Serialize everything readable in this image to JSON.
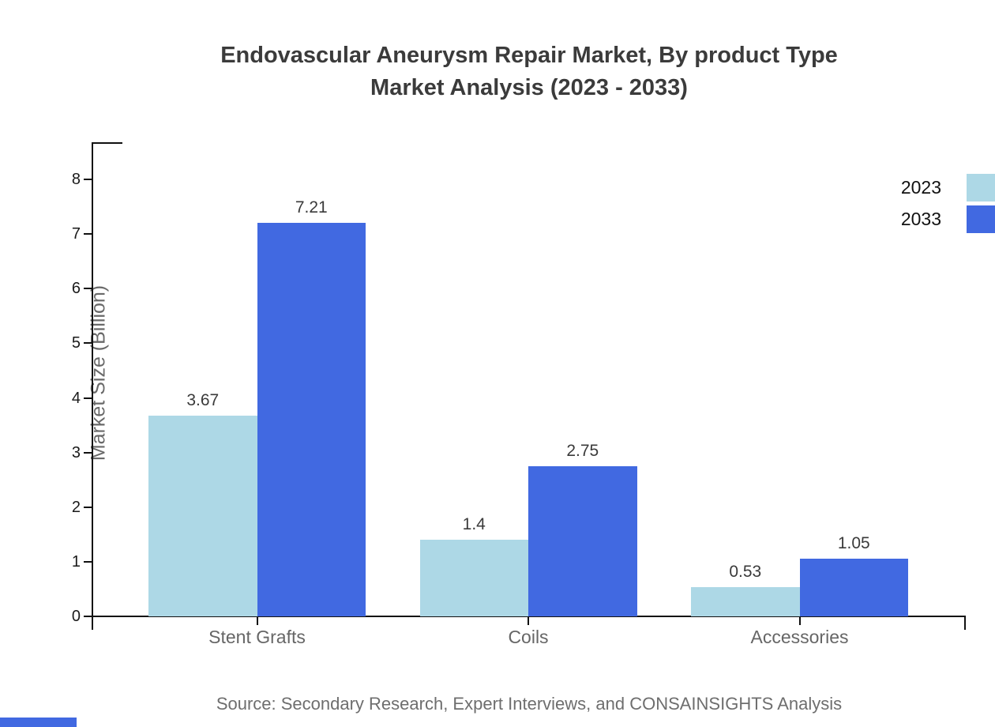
{
  "title": {
    "line1": "Endovascular Aneurysm Repair Market, By product Type",
    "line2": "Market Analysis (2023 - 2033)"
  },
  "source": "Source: Secondary Research, Expert Interviews, and CONSAINSIGHTS Analysis",
  "colors": {
    "series_2023": "#ADD8E6",
    "series_2033": "#4169E1",
    "accent": "#4169E1",
    "axis": "#111111",
    "title_text": "#3b3b3b",
    "value_label_text": "#3a3a3a",
    "category_text": "#666666"
  },
  "legend": {
    "items": [
      {
        "label": "2023",
        "color": "#ADD8E6"
      },
      {
        "label": "2033",
        "color": "#4169E1"
      }
    ]
  },
  "chart_data": {
    "type": "bar",
    "title": "Endovascular Aneurysm Repair Market, By product Type Market Analysis (2023 - 2033)",
    "categories": [
      "Stent Grafts",
      "Coils",
      "Accessories"
    ],
    "series": [
      {
        "name": "2023",
        "color": "#ADD8E6",
        "values": [
          3.67,
          1.4,
          0.53
        ]
      },
      {
        "name": "2033",
        "color": "#4169E1",
        "values": [
          7.21,
          2.75,
          1.05
        ]
      }
    ],
    "xlabel": "",
    "ylabel": "Market Size (Billion)",
    "ylim": [
      0,
      8
    ],
    "yticks": [
      0,
      1,
      2,
      3,
      4,
      5,
      6,
      7,
      8
    ],
    "grid": false,
    "legend_position": "top-right"
  }
}
